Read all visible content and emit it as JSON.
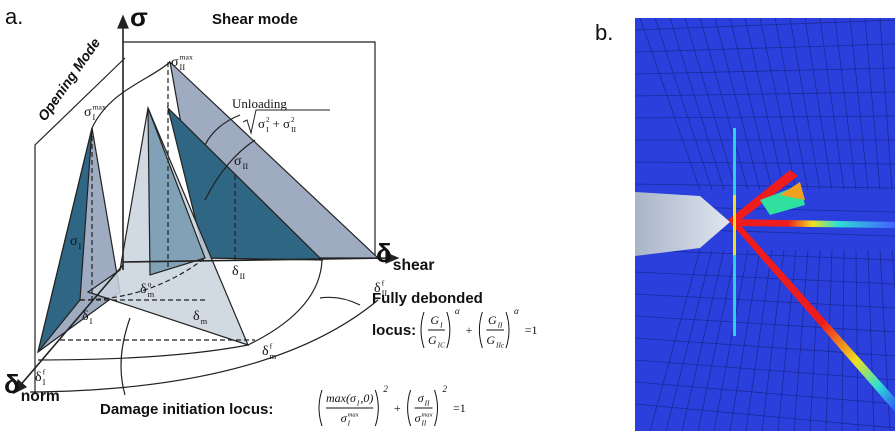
{
  "panel_a": {
    "label": "a.",
    "axes": {
      "sigma": "σ",
      "shear": {
        "base": "δ",
        "sub": "shear"
      },
      "norm": {
        "base": "δ",
        "sub": "norm"
      }
    },
    "planes": {
      "shear_mode": "Shear mode",
      "opening_mode": "Opening Mode"
    },
    "unloading": "Unloading",
    "resultant": {
      "terms": [
        {
          "base": "σ",
          "sub": "I",
          "sup": 2
        },
        {
          "base": "σ",
          "sub": "II",
          "sup": 2
        }
      ],
      "op": "+"
    },
    "labels": [
      {
        "base": "σ",
        "sub": "I",
        "sup": "max"
      },
      {
        "base": "σ",
        "sub": "II",
        "sup": "max"
      },
      {
        "base": "σ",
        "sub": "II"
      },
      {
        "base": "σ",
        "sub": "I"
      },
      {
        "base": "δ",
        "sub": "II",
        "sup": "f"
      },
      {
        "base": "δ",
        "sub": "II"
      },
      {
        "base": "δ",
        "sub": "m",
        "sup": "o"
      },
      {
        "base": "δ",
        "sub": "I"
      },
      {
        "base": "δ",
        "sub": "m"
      },
      {
        "base": "δ",
        "sub": "m",
        "sup": "f"
      },
      {
        "base": "δ",
        "sub": "I",
        "sup": "f"
      }
    ],
    "fully_debonded": {
      "title": "Fully debonded",
      "title2": "locus:",
      "terms": [
        {
          "num": {
            "base": "G",
            "sub": "I"
          },
          "den": {
            "base": "G",
            "sub": "IC"
          },
          "exp": "α"
        },
        {
          "num": {
            "base": "G",
            "sub": "II"
          },
          "den": {
            "base": "G",
            "sub": "IIc"
          },
          "exp": "α"
        }
      ],
      "ops": [
        "+",
        "=1"
      ]
    },
    "damage_initiation": {
      "title": "Damage initiation locus:",
      "terms": [
        {
          "num": {
            "base": "max(σ",
            "sub": "I",
            "tail": ",0)"
          },
          "den": {
            "base": "σ",
            "sub": "I",
            "sup": "max"
          },
          "exp": 2
        },
        {
          "num": {
            "base": "σ",
            "sub": "II"
          },
          "den": {
            "base": "σ",
            "sub": "II",
            "sup": "max"
          },
          "exp": 2
        }
      ],
      "ops": [
        "+",
        "=1"
      ]
    }
  },
  "panel_b": {
    "label": "b."
  }
}
